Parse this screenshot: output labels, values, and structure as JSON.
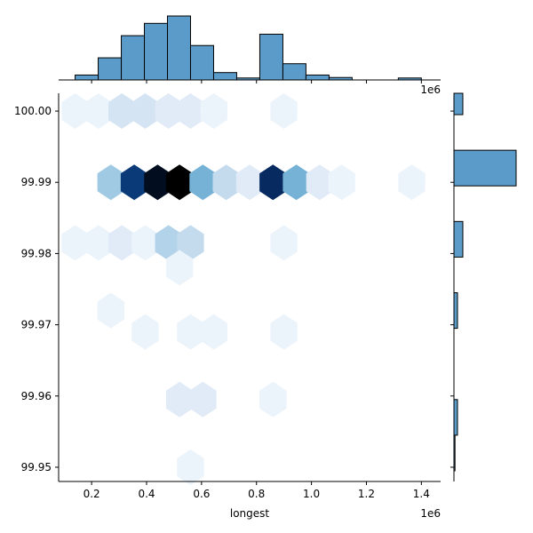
{
  "chart_data": {
    "type": "hexbin",
    "title": "",
    "xlabel": "longest",
    "ylabel": "",
    "x_offset_label": "1e6",
    "top_hist_offset_label": "1e6",
    "xlim": [
      0.08,
      1.47
    ],
    "ylim": [
      99.948,
      100.0025
    ],
    "x_ticks": [
      0.2,
      0.4,
      0.6,
      0.8,
      1.0,
      1.2,
      1.4
    ],
    "x_tick_labels": [
      "0.2",
      "0.4",
      "0.6",
      "0.8",
      "1.0",
      "1.2",
      "1.4"
    ],
    "y_ticks": [
      99.95,
      99.96,
      99.97,
      99.98,
      99.99,
      100.0
    ],
    "y_tick_labels": [
      "99.95",
      "99.96",
      "99.97",
      "99.98",
      "99.99",
      "100.00"
    ],
    "grid": false,
    "colormap": [
      "#f7fbff",
      "#d0e1f2",
      "#94c4df",
      "#4a98c9",
      "#1764ab",
      "#08306b",
      "#000000"
    ],
    "hexbins": [
      {
        "x": 0.14,
        "y": 100.0,
        "count": 1
      },
      {
        "x": 0.225,
        "y": 100.0,
        "count": 1
      },
      {
        "x": 0.31,
        "y": 100.0,
        "count": 3
      },
      {
        "x": 0.395,
        "y": 100.0,
        "count": 3
      },
      {
        "x": 0.48,
        "y": 100.0,
        "count": 2
      },
      {
        "x": 0.56,
        "y": 100.0,
        "count": 2
      },
      {
        "x": 0.645,
        "y": 100.0,
        "count": 1
      },
      {
        "x": 0.9,
        "y": 100.0,
        "count": 1
      },
      {
        "x": 0.27,
        "y": 99.99,
        "count": 6
      },
      {
        "x": 0.355,
        "y": 99.99,
        "count": 16
      },
      {
        "x": 0.44,
        "y": 99.99,
        "count": 19
      },
      {
        "x": 0.52,
        "y": 99.99,
        "count": 20
      },
      {
        "x": 0.605,
        "y": 99.99,
        "count": 8
      },
      {
        "x": 0.69,
        "y": 99.99,
        "count": 4
      },
      {
        "x": 0.775,
        "y": 99.99,
        "count": 2
      },
      {
        "x": 0.86,
        "y": 99.99,
        "count": 17
      },
      {
        "x": 0.945,
        "y": 99.99,
        "count": 8
      },
      {
        "x": 1.03,
        "y": 99.99,
        "count": 2
      },
      {
        "x": 1.11,
        "y": 99.99,
        "count": 1
      },
      {
        "x": 1.365,
        "y": 99.99,
        "count": 1
      },
      {
        "x": 0.14,
        "y": 99.9815,
        "count": 1
      },
      {
        "x": 0.225,
        "y": 99.9815,
        "count": 1
      },
      {
        "x": 0.31,
        "y": 99.9815,
        "count": 2
      },
      {
        "x": 0.395,
        "y": 99.9815,
        "count": 1
      },
      {
        "x": 0.48,
        "y": 99.9815,
        "count": 5
      },
      {
        "x": 0.56,
        "y": 99.9815,
        "count": 4
      },
      {
        "x": 0.9,
        "y": 99.9815,
        "count": 1
      },
      {
        "x": 0.52,
        "y": 99.978,
        "count": 1
      },
      {
        "x": 0.27,
        "y": 99.972,
        "count": 1
      },
      {
        "x": 0.395,
        "y": 99.969,
        "count": 1
      },
      {
        "x": 0.56,
        "y": 99.969,
        "count": 1
      },
      {
        "x": 0.645,
        "y": 99.969,
        "count": 1
      },
      {
        "x": 0.9,
        "y": 99.969,
        "count": 1
      },
      {
        "x": 0.52,
        "y": 99.9595,
        "count": 2
      },
      {
        "x": 0.605,
        "y": 99.9595,
        "count": 2
      },
      {
        "x": 0.86,
        "y": 99.9595,
        "count": 1
      },
      {
        "x": 0.56,
        "y": 99.95,
        "count": 1
      }
    ],
    "hex_max_count": 20,
    "top_histogram": {
      "bin_edges": [
        0.14,
        0.224,
        0.308,
        0.392,
        0.476,
        0.56,
        0.644,
        0.728,
        0.812,
        0.896,
        0.98,
        1.064,
        1.148,
        1.232,
        1.316,
        1.4
      ],
      "counts": [
        1,
        4.5,
        9,
        11.5,
        13,
        7,
        1.5,
        0.4,
        9.3,
        3.3,
        1,
        0.5,
        0,
        0,
        0.4
      ]
    },
    "right_histogram": {
      "bin_edges": [
        99.9495,
        99.9545,
        99.9595,
        99.9645,
        99.9695,
        99.9745,
        99.9795,
        99.9845,
        99.9895,
        99.9945,
        99.9995,
        100.0025
      ],
      "counts": [
        0.3,
        1,
        0,
        0,
        1,
        0,
        2.5,
        0,
        17.5,
        0,
        2.5
      ]
    }
  }
}
